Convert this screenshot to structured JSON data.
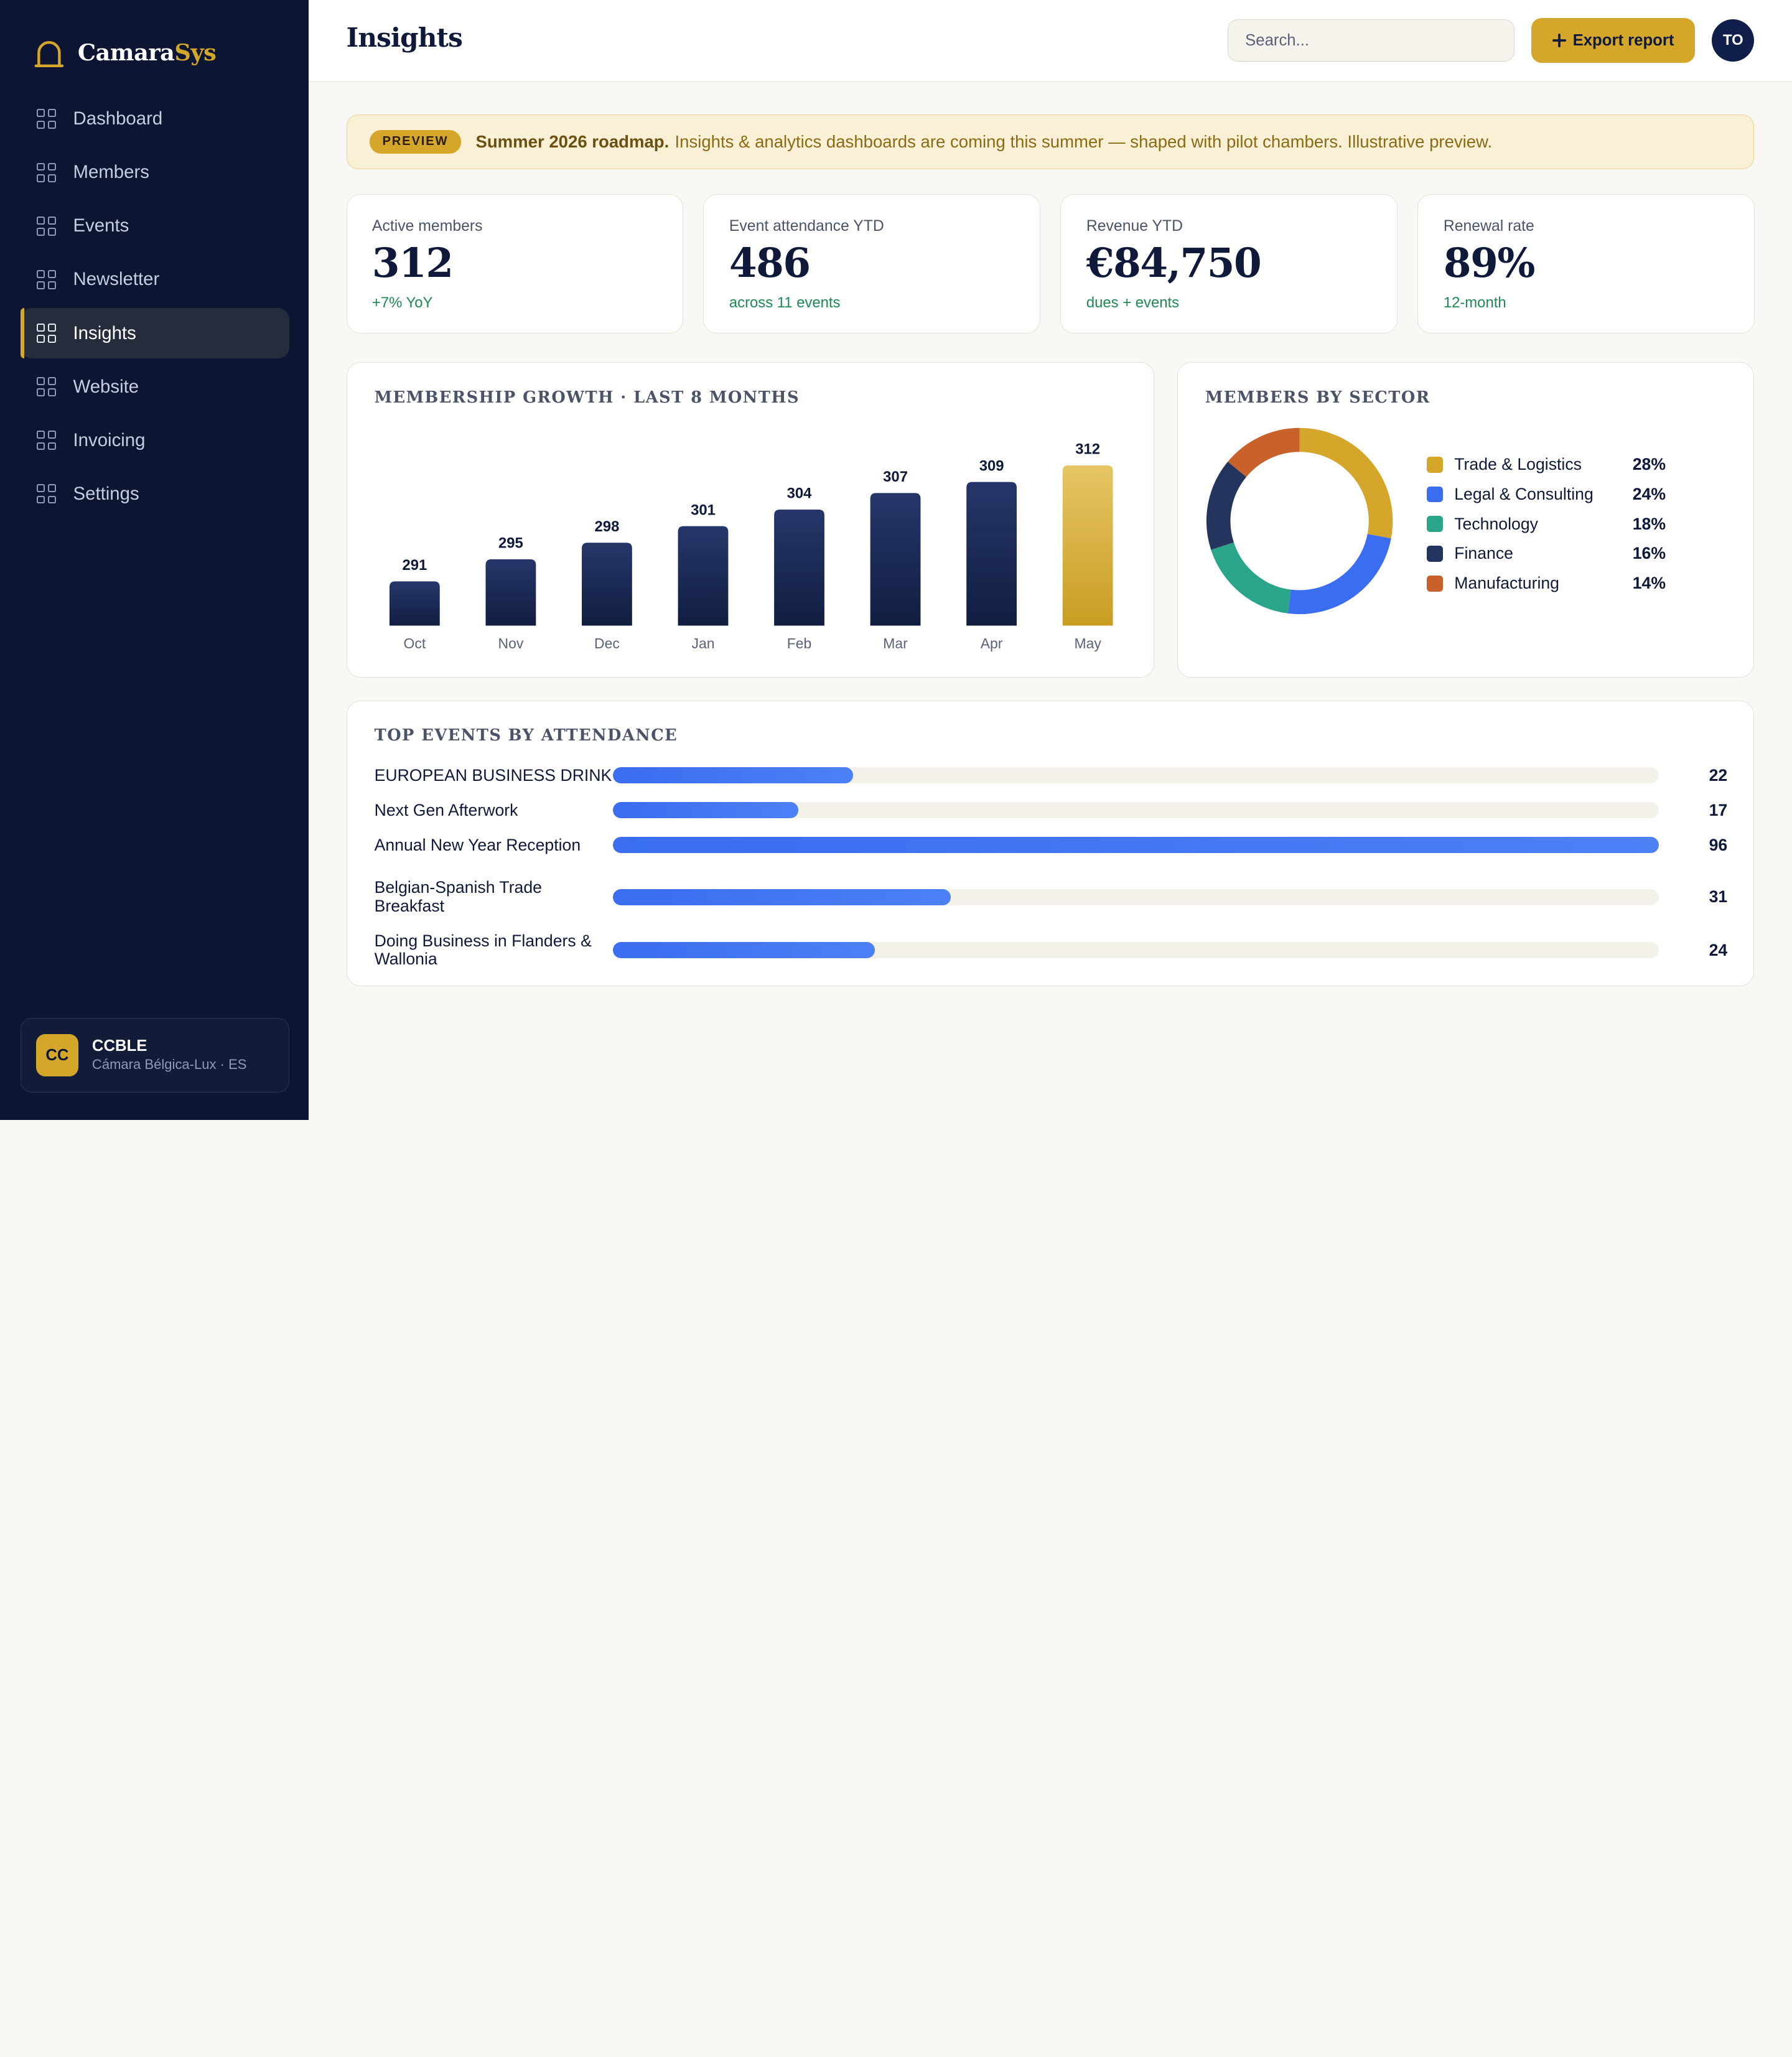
{
  "brand": {
    "name_main": "Camara",
    "name_accent": "Sys"
  },
  "sidebar": {
    "items": [
      {
        "label": "Dashboard"
      },
      {
        "label": "Members"
      },
      {
        "label": "Events"
      },
      {
        "label": "Newsletter"
      },
      {
        "label": "Insights",
        "active": true
      },
      {
        "label": "Website"
      },
      {
        "label": "Invoicing"
      },
      {
        "label": "Settings"
      }
    ],
    "org": {
      "initials": "CC",
      "name": "CCBLE",
      "subtitle": "Cámara Bélgica-Lux · ES"
    }
  },
  "header": {
    "title": "Insights",
    "search_placeholder": "Search...",
    "export_label": "Export report",
    "export_icon": "plus-icon",
    "user_initials": "TO"
  },
  "banner": {
    "pill": "PREVIEW",
    "bold": "Summer 2026 roadmap.",
    "text": "Insights & analytics dashboards are coming this summer — shaped with pilot chambers. Illustrative preview."
  },
  "kpis": [
    {
      "label": "Active members",
      "value": "312",
      "delta": "+7% YoY"
    },
    {
      "label": "Event attendance YTD",
      "value": "486",
      "delta": "across 11 events"
    },
    {
      "label": "Revenue YTD",
      "value": "€84,750",
      "delta": "dues + events"
    },
    {
      "label": "Renewal rate",
      "value": "89%",
      "delta": "12-month"
    }
  ],
  "growth": {
    "title": "MEMBERSHIP GROWTH · LAST 8 MONTHS"
  },
  "sector": {
    "title": "MEMBERS BY SECTOR"
  },
  "events": {
    "title": "TOP EVENTS BY ATTENDANCE",
    "rows": [
      {
        "name": "EUROPEAN BUSINESS DRINK",
        "count": "22"
      },
      {
        "name": "Next Gen Afterwork",
        "count": "17"
      },
      {
        "name": "Annual New Year Reception",
        "count": "96"
      },
      {
        "name": "Belgian-Spanish Trade Breakfast",
        "count": "31"
      },
      {
        "name": "Doing Business in Flanders & Wallonia",
        "count": "24"
      }
    ]
  },
  "colors": {
    "navy": "#0c1633",
    "gold": "#d4a62a",
    "bar_navy": "#1c2b55",
    "accent_blue": "#3a6df0",
    "success_green": "#1e8a52"
  },
  "chart_data": [
    {
      "type": "bar",
      "title": "MEMBERSHIP GROWTH · LAST 8 MONTHS",
      "categories": [
        "Oct",
        "Nov",
        "Dec",
        "Jan",
        "Feb",
        "Mar",
        "Apr",
        "May"
      ],
      "values": [
        291,
        295,
        298,
        301,
        304,
        307,
        309,
        312
      ],
      "highlight_last": true,
      "ylim": [
        283,
        313
      ]
    },
    {
      "type": "pie",
      "title": "MEMBERS BY SECTOR",
      "donut": true,
      "slices": [
        {
          "name": "Trade & Logistics",
          "value": 28,
          "label": "28%",
          "color": "#d4a62a"
        },
        {
          "name": "Legal & Consulting",
          "value": 24,
          "label": "24%",
          "color": "#3a6df0"
        },
        {
          "name": "Technology",
          "value": 18,
          "label": "18%",
          "color": "#2aa58a"
        },
        {
          "name": "Finance",
          "value": 16,
          "label": "16%",
          "color": "#23355e"
        },
        {
          "name": "Manufacturing",
          "value": 14,
          "label": "14%",
          "color": "#c9622a"
        }
      ]
    },
    {
      "type": "bar",
      "orientation": "horizontal",
      "title": "TOP EVENTS BY ATTENDANCE",
      "categories": [
        "EUROPEAN BUSINESS DRINK",
        "Next Gen Afterwork",
        "Annual New Year Reception",
        "Belgian-Spanish Trade Breakfast",
        "Doing Business in Flanders & Wallonia"
      ],
      "values": [
        22,
        17,
        96,
        31,
        24
      ],
      "xlim": [
        0,
        96
      ]
    }
  ]
}
